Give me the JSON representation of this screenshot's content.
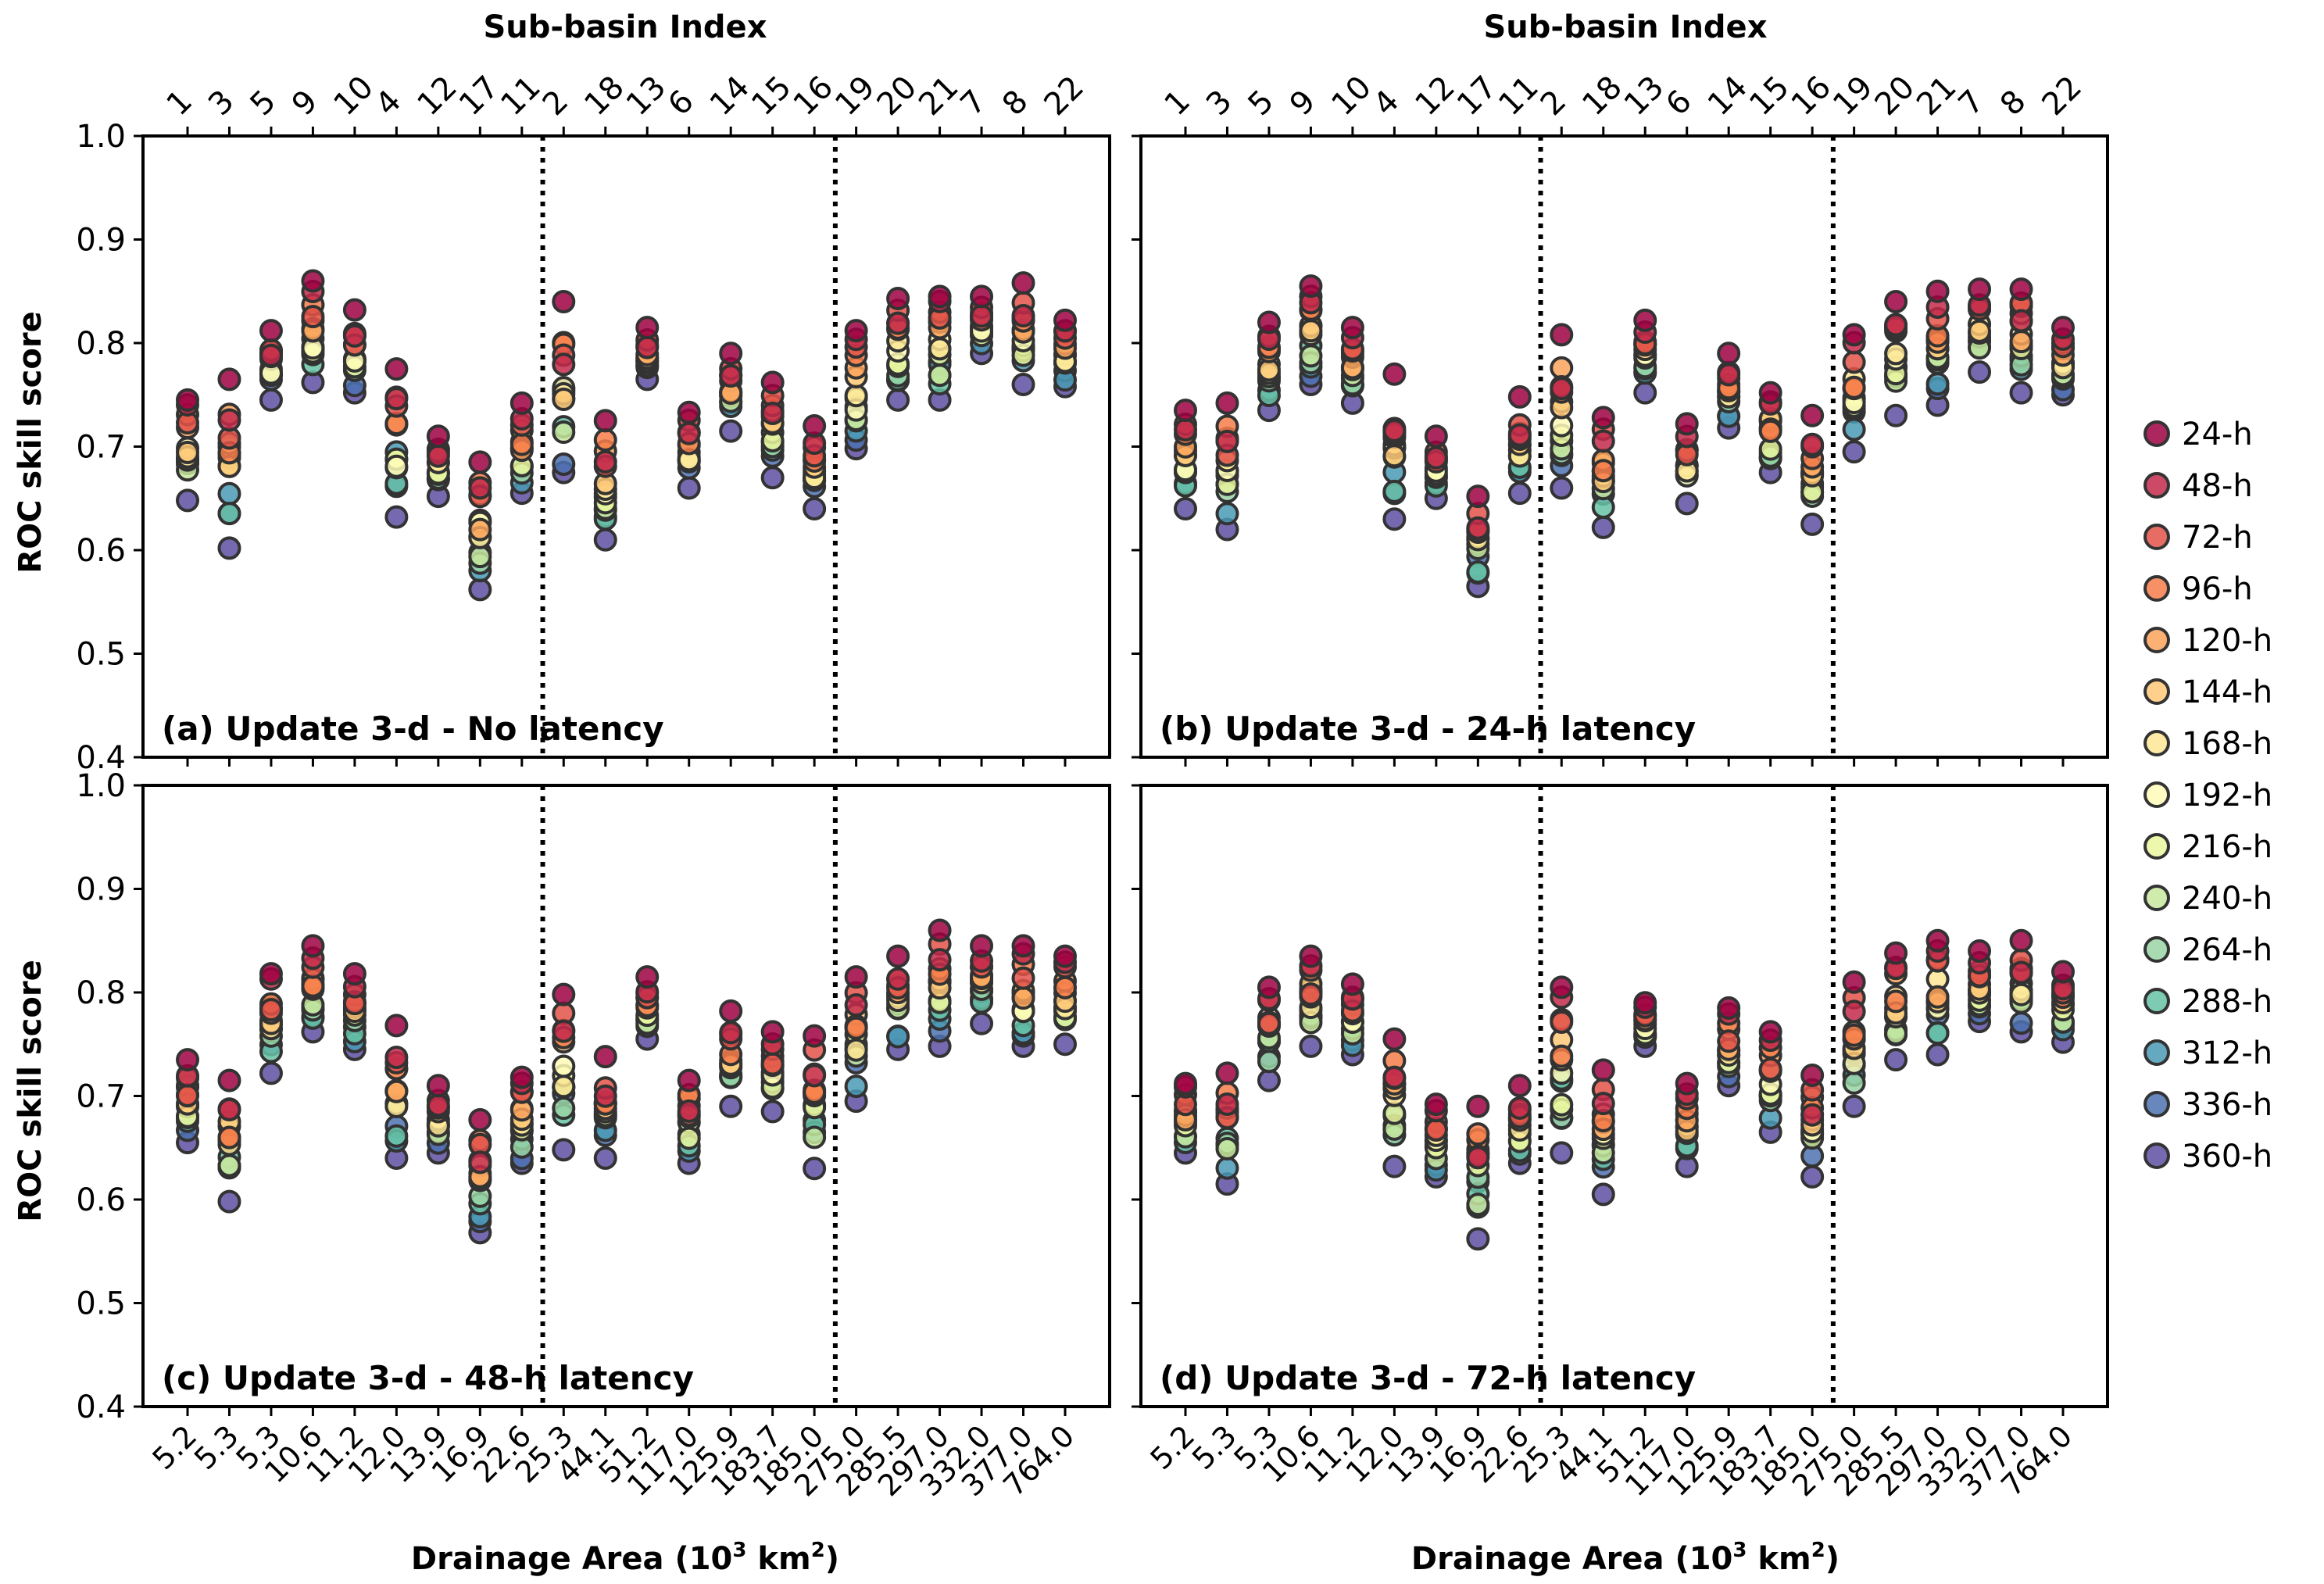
{
  "figure": {
    "top_axis_title": "Sub-basin Index",
    "x_axis_title_main": "Drainage Area (10",
    "x_axis_title_sup": "3",
    "x_axis_title_mid": " km",
    "x_axis_title_sup2": "2",
    "x_axis_title_end": ")",
    "y_axis_title": "ROC skill score"
  },
  "chart_data": {
    "type": "scatter",
    "subbasin_index": [
      "1",
      "3",
      "5",
      "9",
      "10",
      "4",
      "12",
      "17",
      "11",
      "2",
      "18",
      "13",
      "6",
      "14",
      "15",
      "16",
      "19",
      "20",
      "21",
      "7",
      "8",
      "22"
    ],
    "categories": [
      "5.2",
      "5.3",
      "5.3",
      "10.6",
      "11.2",
      "12.0",
      "13.9",
      "16.9",
      "22.6",
      "25.3",
      "44.1",
      "51.2",
      "117.0",
      "125.9",
      "183.7",
      "185.0",
      "275.0",
      "285.5",
      "297.0",
      "332.0",
      "377.0",
      "764.0"
    ],
    "ylim": [
      0.4,
      1.0
    ],
    "yticks": [
      "0.4",
      "0.5",
      "0.6",
      "0.7",
      "0.8",
      "0.9",
      "1.0"
    ],
    "group_separators_after_index": [
      8,
      15
    ],
    "legend": [
      "24-h",
      "48-h",
      "72-h",
      "96-h",
      "120-h",
      "144-h",
      "168-h",
      "192-h",
      "216-h",
      "240-h",
      "264-h",
      "288-h",
      "312-h",
      "336-h",
      "360-h"
    ],
    "colors": [
      "#9e0142",
      "#c32a4b",
      "#e25249",
      "#f67d4a",
      "#fba35c",
      "#fec877",
      "#fee695",
      "#fefcb8",
      "#eaf79f",
      "#c8e99f",
      "#99d5a4",
      "#66c2a5",
      "#4a9ab5",
      "#4c72b1",
      "#5e4fa2"
    ],
    "panels": [
      {
        "label": "(a) Update 3-d - No latency",
        "max": [
          0.745,
          0.765,
          0.812,
          0.86,
          0.832,
          0.775,
          0.71,
          0.685,
          0.742,
          0.84,
          0.725,
          0.815,
          0.733,
          0.79,
          0.762,
          0.72,
          0.812,
          0.843,
          0.845,
          0.845,
          0.858,
          0.822
        ],
        "min": [
          0.648,
          0.602,
          0.745,
          0.762,
          0.752,
          0.632,
          0.652,
          0.562,
          0.655,
          0.675,
          0.61,
          0.765,
          0.66,
          0.715,
          0.67,
          0.64,
          0.698,
          0.745,
          0.745,
          0.79,
          0.76,
          0.758
        ]
      },
      {
        "label": "(b) Update 3-d - 24-h latency",
        "max": [
          0.735,
          0.742,
          0.82,
          0.855,
          0.815,
          0.77,
          0.71,
          0.652,
          0.748,
          0.808,
          0.728,
          0.822,
          0.722,
          0.79,
          0.752,
          0.73,
          0.808,
          0.84,
          0.85,
          0.852,
          0.852,
          0.815
        ],
        "min": [
          0.64,
          0.62,
          0.735,
          0.76,
          0.742,
          0.63,
          0.65,
          0.565,
          0.655,
          0.66,
          0.622,
          0.752,
          0.645,
          0.718,
          0.675,
          0.625,
          0.695,
          0.73,
          0.74,
          0.772,
          0.752,
          0.75
        ]
      },
      {
        "label": "(c) Update 3-d - 48-h latency",
        "max": [
          0.735,
          0.715,
          0.818,
          0.845,
          0.818,
          0.768,
          0.71,
          0.677,
          0.718,
          0.798,
          0.738,
          0.815,
          0.715,
          0.782,
          0.762,
          0.758,
          0.815,
          0.835,
          0.86,
          0.845,
          0.845,
          0.835
        ],
        "min": [
          0.655,
          0.598,
          0.722,
          0.762,
          0.745,
          0.64,
          0.645,
          0.568,
          0.635,
          0.648,
          0.64,
          0.755,
          0.635,
          0.69,
          0.685,
          0.63,
          0.695,
          0.745,
          0.748,
          0.77,
          0.748,
          0.75
        ]
      },
      {
        "label": "(d) Update 3-d - 72-h latency",
        "max": [
          0.712,
          0.722,
          0.805,
          0.835,
          0.808,
          0.755,
          0.692,
          0.69,
          0.71,
          0.805,
          0.725,
          0.79,
          0.712,
          0.785,
          0.762,
          0.72,
          0.81,
          0.838,
          0.85,
          0.84,
          0.85,
          0.82
        ],
        "min": [
          0.645,
          0.615,
          0.715,
          0.748,
          0.74,
          0.632,
          0.622,
          0.562,
          0.635,
          0.645,
          0.605,
          0.748,
          0.632,
          0.71,
          0.665,
          0.622,
          0.69,
          0.735,
          0.74,
          0.772,
          0.762,
          0.752
        ]
      }
    ]
  }
}
